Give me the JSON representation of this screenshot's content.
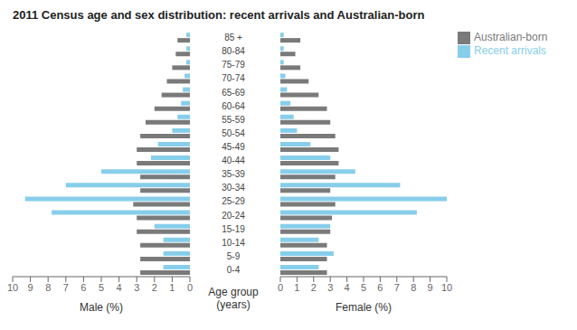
{
  "chart_data": [
    {
      "type": "bar",
      "orientation": "horizontal",
      "title": "2011 Census age and sex distribution: recent arrivals and Australian-born",
      "categories": [
        "0-4",
        "5-9",
        "10-14",
        "15-19",
        "20-24",
        "25-29",
        "30-34",
        "35-39",
        "40-44",
        "45-49",
        "50-54",
        "55-59",
        "60-64",
        "65-69",
        "70-74",
        "75-79",
        "80-84",
        "85 +"
      ],
      "xlabel": "Male (%)",
      "ylabel": "Age group (years)",
      "xlim": [
        10,
        0
      ],
      "xticks": [
        0,
        1,
        2,
        3,
        4,
        5,
        6,
        7,
        8,
        9,
        10
      ],
      "series": [
        {
          "name": "Recent arrivals",
          "color": "#87CEEB",
          "values": [
            1.5,
            1.5,
            1.5,
            2.0,
            7.8,
            9.3,
            7.0,
            5.0,
            2.2,
            1.8,
            1.0,
            0.7,
            0.5,
            0.4,
            0.3,
            0.2,
            0.2,
            0.2
          ]
        },
        {
          "name": "Australian-born",
          "color": "#7a7a7a",
          "values": [
            2.8,
            2.8,
            2.8,
            3.0,
            3.0,
            3.2,
            2.8,
            2.8,
            3.0,
            3.0,
            2.8,
            2.5,
            2.0,
            1.6,
            1.3,
            1.0,
            0.8,
            0.7
          ]
        }
      ]
    },
    {
      "type": "bar",
      "orientation": "horizontal",
      "categories": [
        "0-4",
        "5-9",
        "10-14",
        "15-19",
        "20-24",
        "25-29",
        "30-34",
        "35-39",
        "40-44",
        "45-49",
        "50-54",
        "55-59",
        "60-64",
        "65-69",
        "70-74",
        "75-79",
        "80-84",
        "85 +"
      ],
      "xlabel": "Female (%)",
      "xlim": [
        0,
        10
      ],
      "xticks": [
        0,
        1,
        2,
        3,
        4,
        5,
        6,
        7,
        8,
        9,
        10
      ],
      "tick_labels": "x",
      "legend": "upper right",
      "series": [
        {
          "name": "Recent arrivals",
          "color": "#87CEEB",
          "values": [
            2.3,
            3.2,
            2.3,
            3.0,
            8.2,
            10.0,
            7.2,
            4.5,
            3.0,
            1.8,
            1.0,
            0.8,
            0.6,
            0.4,
            0.3,
            0.2,
            0.2,
            0.2
          ]
        },
        {
          "name": "Australian-born",
          "color": "#7a7a7a",
          "values": [
            2.8,
            2.8,
            2.8,
            3.0,
            3.1,
            3.3,
            3.0,
            3.3,
            3.5,
            3.5,
            3.3,
            3.0,
            2.8,
            2.3,
            1.7,
            1.2,
            0.9,
            1.2
          ]
        }
      ]
    }
  ]
}
